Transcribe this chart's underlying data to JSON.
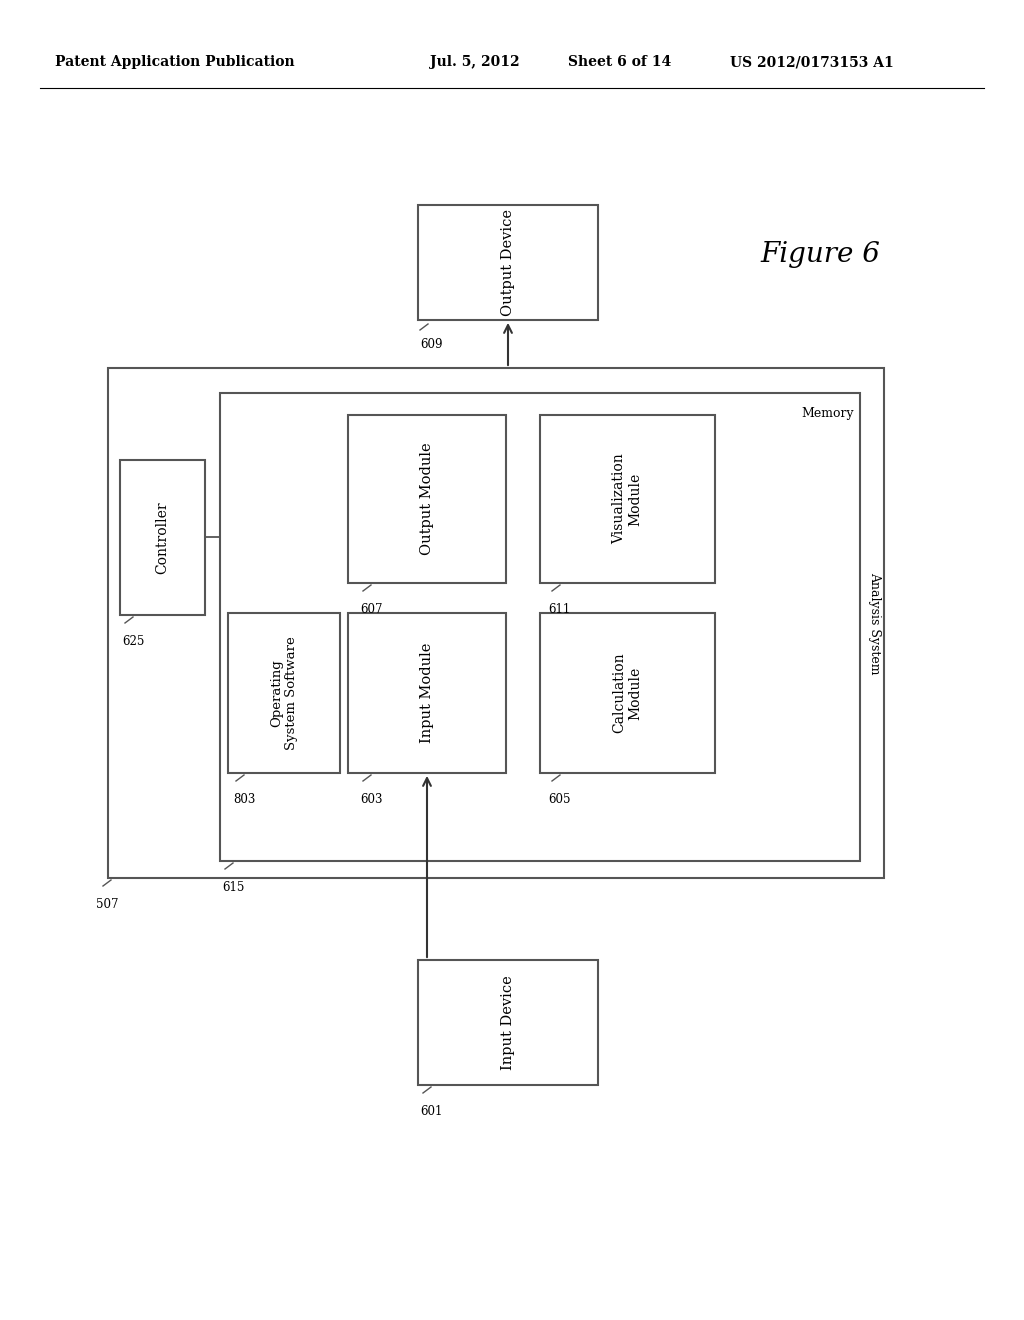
{
  "header_left": "Patent Application Publication",
  "header_mid": "Jul. 5, 2012   Sheet 6 of 14",
  "header_right": "US 2012/0173153 A1",
  "figure_label": "Figure 6",
  "bg_color": "#ffffff",
  "output_device": {
    "label": "Output Device",
    "ref": "609"
  },
  "input_device": {
    "label": "Input Device",
    "ref": "601"
  },
  "controller": {
    "label": "Controller",
    "ref": "625"
  },
  "output_module": {
    "label": "Output Module",
    "ref": "607"
  },
  "input_module": {
    "label": "Input Module",
    "ref": "603"
  },
  "visualization_module": {
    "label": "Visualization\nModule",
    "ref": "611"
  },
  "calculation_module": {
    "label": "Calculation\nModule",
    "ref": "605"
  },
  "os_software": {
    "label": "Operating\nSystem Software",
    "ref": "803"
  },
  "memory_label": "Memory",
  "analysis_system_label": "Analysis System",
  "ref_analysis_system": "507",
  "ref_memory": "615"
}
